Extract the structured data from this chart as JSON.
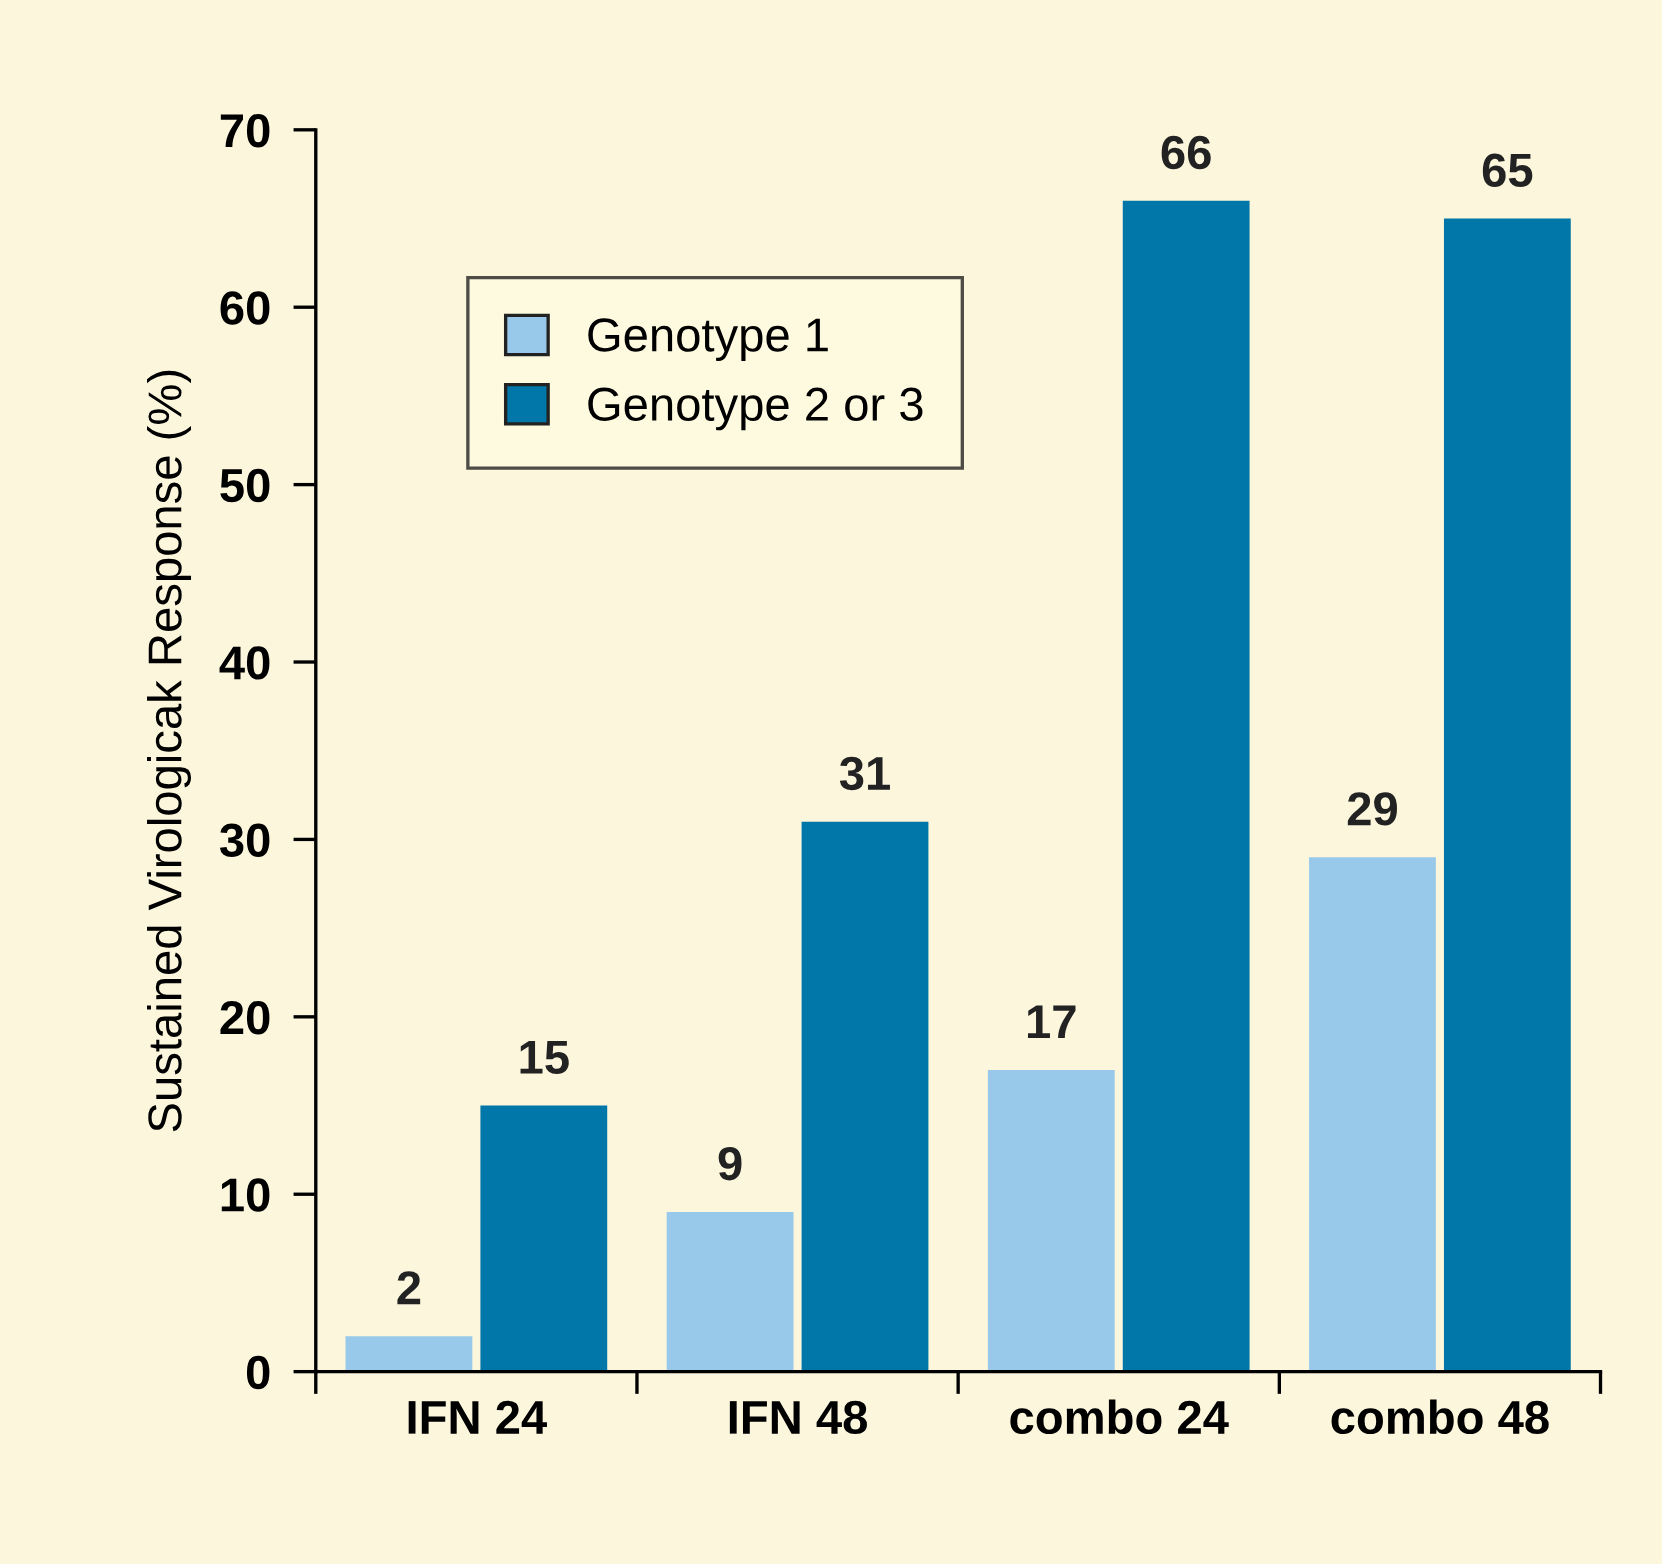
{
  "chart_data": {
    "type": "bar",
    "ylabel": "Sustained Virologicak Response (%)",
    "categories": [
      "IFN 24",
      "IFN 48",
      "combo 24",
      "combo 48"
    ],
    "series": [
      {
        "name": "Genotype 1",
        "color": "#99c9ea",
        "values": [
          2,
          9,
          17,
          29
        ]
      },
      {
        "name": "Genotype 2 or 3",
        "color": "#0077a8",
        "values": [
          15,
          31,
          66,
          65
        ]
      }
    ],
    "ylim": [
      0,
      70
    ],
    "yticks": [
      0,
      10,
      20,
      30,
      40,
      50,
      60,
      70
    ],
    "grid": false,
    "legend": "top left",
    "data_labels": true
  }
}
